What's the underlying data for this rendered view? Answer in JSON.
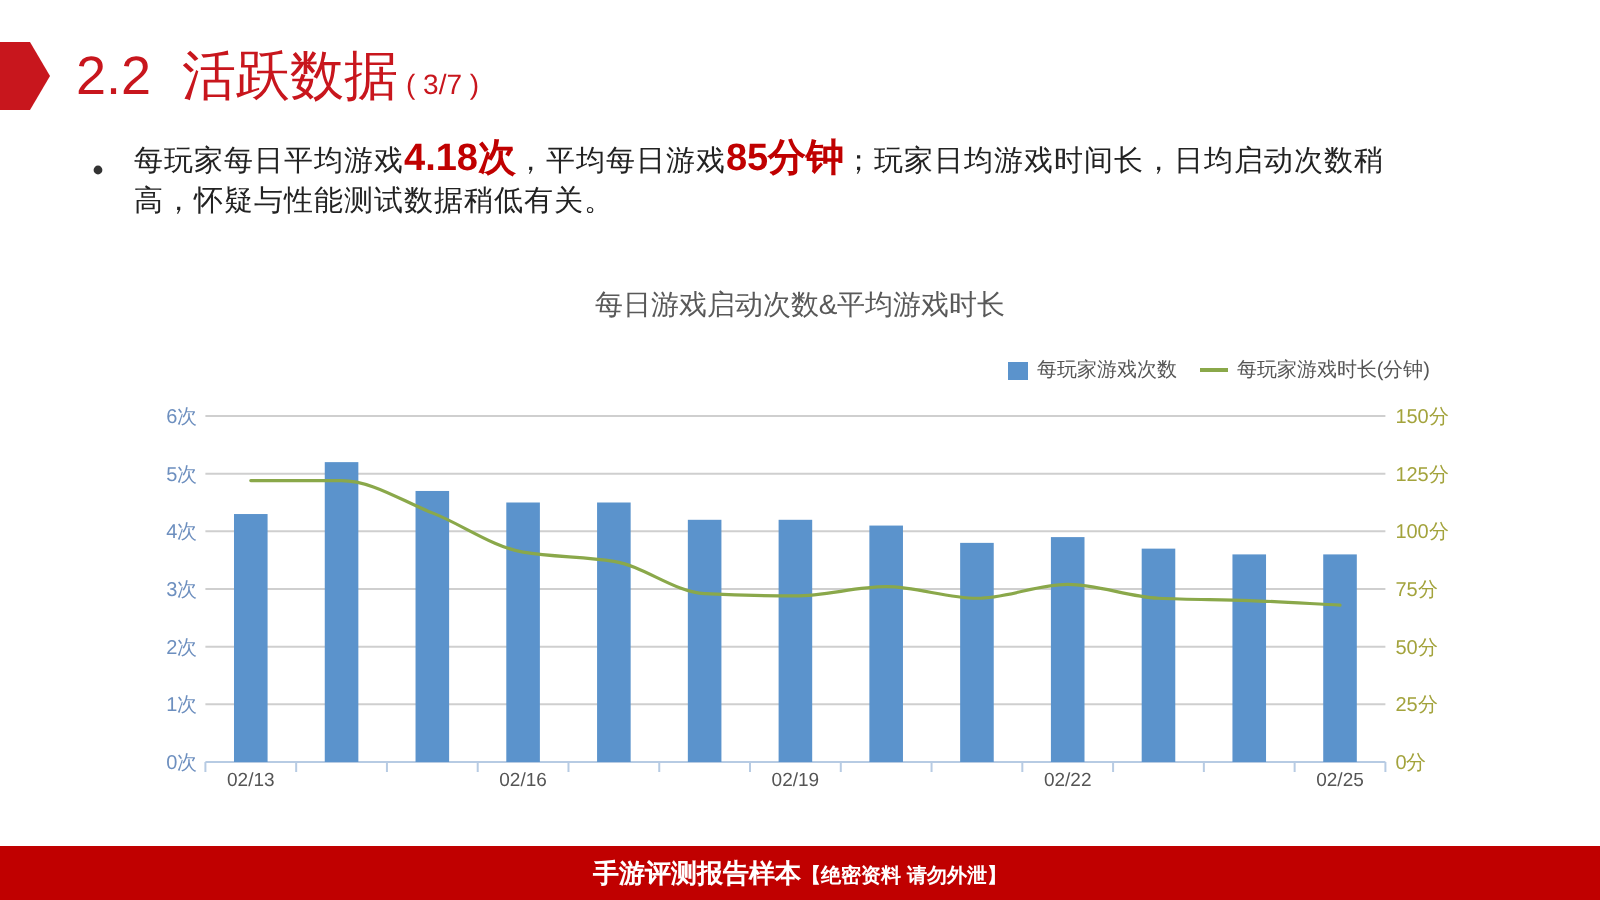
{
  "chart_data": {
    "type": "bar",
    "title": "每日游戏启动次数&平均游戏时长",
    "annotations": [
      "2.2 活跃数据",
      "( 3/7 )",
      "每玩家每日平均游戏**4.18次**，平均每日游戏**85分钟**；玩家日均游戏时间长，日均启动次数稍高，怀疑与性能测试数据稍低有关。",
      "手游评测报告样本",
      "【绝密资料 请勿外泄】"
    ],
    "categories": [
      "02/13",
      null,
      null,
      "02/16",
      null,
      null,
      "02/19",
      null,
      null,
      "02/22",
      null,
      null,
      "02/25"
    ],
    "series": [
      {
        "name": "每玩家游戏次数",
        "color": "#5b93cc",
        "values": [
          4.3,
          5.2,
          4.7,
          4.5,
          4.5,
          4.2,
          4.2,
          4.1,
          3.8,
          3.9,
          3.7,
          3.6,
          3.6
        ]
      },
      {
        "name": "每玩家游戏时长(分钟)",
        "type": "line",
        "axis": "y2",
        "color": "#8aa84a",
        "values": [
          122,
          122,
          108,
          91,
          87,
          73,
          72,
          76,
          71,
          77,
          71,
          70,
          68
        ]
      }
    ],
    "ylim": [
      0,
      6
    ],
    "yticks": [
      {
        "value": 0,
        "label": "0次"
      },
      {
        "value": 1,
        "label": "1次"
      },
      {
        "value": 2,
        "label": "2次"
      },
      {
        "value": 3,
        "label": "3次"
      },
      {
        "value": 4,
        "label": "4次"
      },
      {
        "value": 5,
        "label": "5次"
      },
      {
        "value": 6,
        "label": "6次"
      }
    ],
    "y2lim": [
      0,
      150
    ],
    "y2ticks": [
      {
        "value": 0,
        "label": "0分"
      },
      {
        "value": 25,
        "label": "25分"
      },
      {
        "value": 50,
        "label": "50分"
      },
      {
        "value": 75,
        "label": "75分"
      },
      {
        "value": 100,
        "label": "100分"
      },
      {
        "value": 125,
        "label": "125分"
      },
      {
        "value": 150,
        "label": "150分"
      }
    ],
    "grid": "y",
    "legend": "top right"
  }
}
